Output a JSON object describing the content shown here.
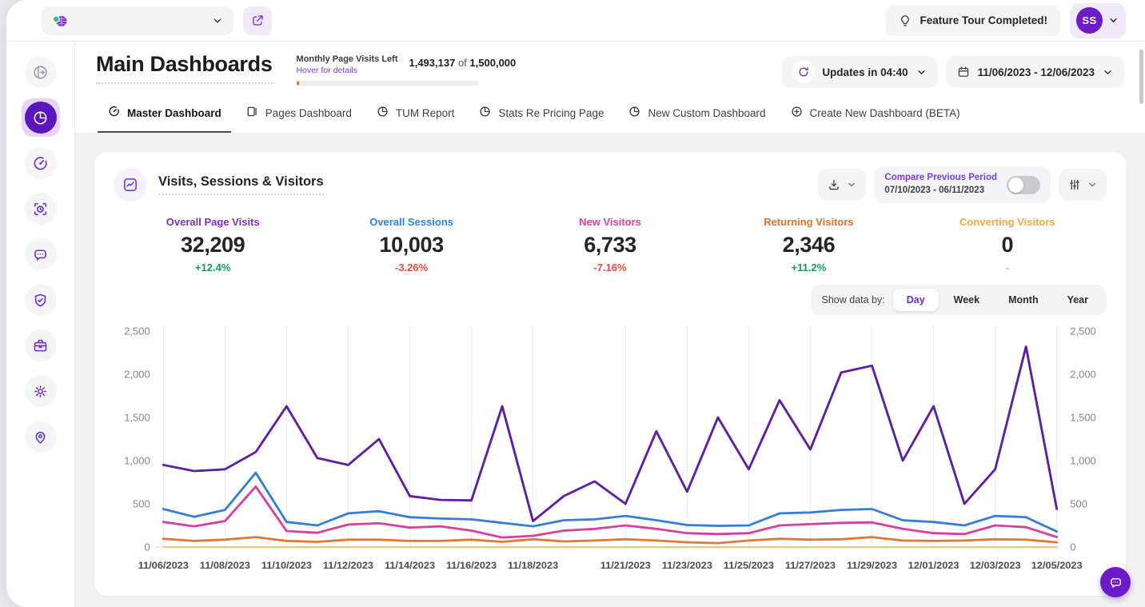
{
  "topbar": {
    "website_selector_value": "",
    "feature_tour_label": "Feature Tour Completed!",
    "avatar_initials": "SS"
  },
  "header": {
    "title": "Main Dashboards",
    "quota": {
      "label": "Monthly Page Visits Left",
      "hover_link": "Hover for details",
      "used": "1,493,137",
      "separator": "of",
      "total": "1,500,000",
      "bar_fill_percent": 1.5
    },
    "updates_label": "Updates in 04:40",
    "date_range": "11/06/2023 - 12/06/2023"
  },
  "tabs": [
    {
      "label": "Master Dashboard",
      "icon": "gauge",
      "active": true
    },
    {
      "label": "Pages Dashboard",
      "icon": "pages",
      "active": false
    },
    {
      "label": "TUM Report",
      "icon": "pie",
      "active": false
    },
    {
      "label": "Stats Re Pricing Page",
      "icon": "pie",
      "active": false
    },
    {
      "label": "New Custom Dashboard",
      "icon": "pie",
      "active": false
    },
    {
      "label": "Create New Dashboard (BETA)",
      "icon": "plus",
      "active": false
    }
  ],
  "sidebar": {
    "items": [
      {
        "icon": "sidebar-expand-icon",
        "active": false,
        "muted": true
      },
      {
        "icon": "pie-chart-icon",
        "active": true,
        "muted": false
      },
      {
        "icon": "gauge-icon",
        "active": false,
        "muted": false
      },
      {
        "icon": "recording-icon",
        "active": false,
        "muted": false
      },
      {
        "icon": "chat-icon",
        "active": false,
        "muted": false
      },
      {
        "icon": "shield-check-icon",
        "active": false,
        "muted": false
      },
      {
        "icon": "briefcase-icon",
        "active": false,
        "muted": false
      },
      {
        "icon": "gear-icon",
        "active": false,
        "muted": false
      },
      {
        "icon": "map-pin-icon",
        "active": false,
        "muted": false
      }
    ]
  },
  "card": {
    "title": "Visits, Sessions & Visitors",
    "compare": {
      "label": "Compare Previous Period",
      "range": "07/10/2023 - 06/11/2023",
      "enabled": false
    },
    "stats": [
      {
        "label": "Overall Page Visits",
        "value": "32,209",
        "change": "+12.4%",
        "direction": "up",
        "color": "#7c30b8"
      },
      {
        "label": "Overall Sessions",
        "value": "10,003",
        "change": "-3.26%",
        "direction": "down",
        "color": "#2f7fe0"
      },
      {
        "label": "New Visitors",
        "value": "6,733",
        "change": "-7.16%",
        "direction": "down",
        "color": "#e53aa0"
      },
      {
        "label": "Returning Visitors",
        "value": "2,346",
        "change": "+11.2%",
        "direction": "up",
        "color": "#e8702a"
      },
      {
        "label": "Converting Visitors",
        "value": "0",
        "change": "-",
        "direction": "none",
        "color": "#f2a93f"
      }
    ],
    "show_data_by": {
      "label": "Show data by:",
      "options": [
        "Day",
        "Week",
        "Month",
        "Year"
      ],
      "selected": "Day"
    }
  },
  "chart_data": {
    "type": "line",
    "title": "Visits, Sessions & Visitors",
    "x": [
      "11/06/2023",
      "11/07/2023",
      "11/08/2023",
      "11/09/2023",
      "11/10/2023",
      "11/11/2023",
      "11/12/2023",
      "11/13/2023",
      "11/14/2023",
      "11/15/2023",
      "11/16/2023",
      "11/17/2023",
      "11/18/2023",
      "11/19/2023",
      "11/20/2023",
      "11/21/2023",
      "11/22/2023",
      "11/23/2023",
      "11/24/2023",
      "11/25/2023",
      "11/26/2023",
      "11/27/2023",
      "11/28/2023",
      "11/29/2023",
      "11/30/2023",
      "12/01/2023",
      "12/02/2023",
      "12/03/2023",
      "12/04/2023",
      "12/05/2023"
    ],
    "x_tick_indices": [
      0,
      2,
      4,
      6,
      8,
      10,
      12,
      15,
      17,
      19,
      21,
      23,
      25,
      27,
      29
    ],
    "ylim": [
      0,
      2500
    ],
    "y_ticks": [
      "0",
      "500",
      "1,000",
      "1,500",
      "2,000",
      "2,500"
    ],
    "grid": "vertical",
    "legend": "none",
    "series": [
      {
        "name": "Overall Page Visits",
        "color": "#5e1ea6",
        "values": [
          950,
          880,
          900,
          1100,
          1630,
          1030,
          950,
          1250,
          590,
          545,
          540,
          1630,
          300,
          590,
          760,
          500,
          1340,
          640,
          1500,
          900,
          1700,
          1130,
          2020,
          2100,
          1000,
          1630,
          500,
          900,
          2320,
          440
        ]
      },
      {
        "name": "Overall Sessions",
        "color": "#377dd5",
        "values": [
          440,
          350,
          430,
          860,
          290,
          250,
          390,
          415,
          345,
          330,
          320,
          280,
          240,
          310,
          320,
          360,
          310,
          255,
          245,
          250,
          390,
          400,
          430,
          440,
          310,
          290,
          250,
          360,
          345,
          180
        ]
      },
      {
        "name": "New Visitors",
        "color": "#d83f9e",
        "values": [
          290,
          240,
          300,
          700,
          185,
          165,
          260,
          275,
          225,
          240,
          190,
          110,
          130,
          190,
          210,
          250,
          210,
          160,
          150,
          160,
          250,
          265,
          280,
          285,
          210,
          160,
          150,
          250,
          230,
          115
        ]
      },
      {
        "name": "Returning Visitors",
        "color": "#e07837",
        "values": [
          95,
          70,
          85,
          115,
          70,
          60,
          85,
          85,
          70,
          70,
          85,
          60,
          90,
          65,
          75,
          90,
          75,
          55,
          45,
          75,
          95,
          85,
          90,
          115,
          75,
          70,
          75,
          90,
          85,
          55
        ]
      },
      {
        "name": "Converting Visitors",
        "color": "#f2b95c",
        "values": [
          0,
          0,
          0,
          0,
          0,
          0,
          0,
          0,
          0,
          0,
          0,
          0,
          0,
          0,
          0,
          0,
          0,
          0,
          0,
          0,
          0,
          0,
          0,
          0,
          0,
          0,
          0,
          0,
          0,
          0
        ]
      }
    ]
  }
}
